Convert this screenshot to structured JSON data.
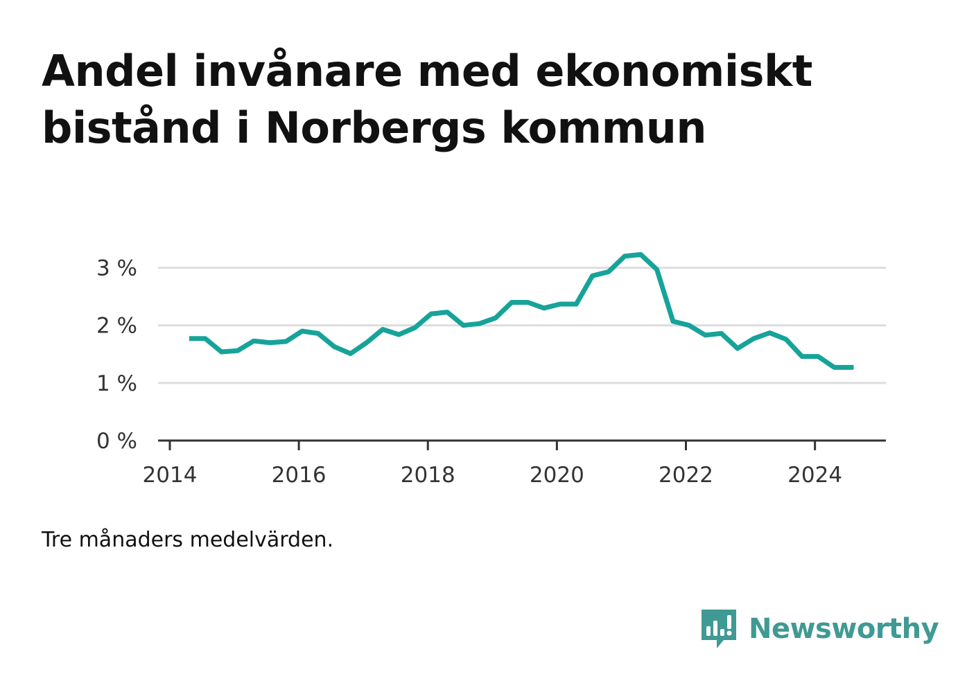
{
  "title": "Andel invånare med ekonomiskt bistånd i Norbergs kommun",
  "note": "Tre månaders medelvärden.",
  "brand": {
    "name": "Newsworthy",
    "icon": "bar-chart-speech-bubble-icon",
    "color": "#3f9a93"
  },
  "chart_data": {
    "type": "line",
    "color": "#16a39a",
    "grid": true,
    "ylim": [
      0,
      3.5
    ],
    "xlim": [
      2014,
      2025.1
    ],
    "y_ticks": [
      {
        "value": 0,
        "label": "0 %"
      },
      {
        "value": 1,
        "label": "1 %"
      },
      {
        "value": 2,
        "label": "2 %"
      },
      {
        "value": 3,
        "label": "3 %"
      }
    ],
    "x_ticks": [
      {
        "value": 2014,
        "label": "2014"
      },
      {
        "value": 2016,
        "label": "2016"
      },
      {
        "value": 2018,
        "label": "2018"
      },
      {
        "value": 2020,
        "label": "2020"
      },
      {
        "value": 2022,
        "label": "2022"
      },
      {
        "value": 2024,
        "label": "2024"
      }
    ],
    "series": [
      {
        "x": [
          2014.3,
          2014.55,
          2014.8,
          2015.05,
          2015.3,
          2015.55,
          2015.8,
          2016.05,
          2016.3,
          2016.55,
          2016.8,
          2017.05,
          2017.3,
          2017.55,
          2017.8,
          2018.05,
          2018.3,
          2018.55,
          2018.8,
          2019.05,
          2019.3,
          2019.55,
          2019.8,
          2020.05,
          2020.3,
          2020.55,
          2020.8,
          2021.05,
          2021.3,
          2021.55,
          2021.8,
          2022.05,
          2022.3,
          2022.55,
          2022.8,
          2023.05,
          2023.3,
          2023.55,
          2023.8,
          2024.05,
          2024.3,
          2024.6
        ],
        "values": [
          1.77,
          1.77,
          1.54,
          1.56,
          1.73,
          1.7,
          1.72,
          1.9,
          1.86,
          1.63,
          1.51,
          1.7,
          1.93,
          1.84,
          1.96,
          2.2,
          2.23,
          2.0,
          2.03,
          2.13,
          2.4,
          2.4,
          2.3,
          2.37,
          2.37,
          2.86,
          2.93,
          3.2,
          3.23,
          2.97,
          2.07,
          2.0,
          1.83,
          1.86,
          1.6,
          1.77,
          1.87,
          1.76,
          1.46,
          1.46,
          1.27,
          1.27
        ]
      }
    ]
  }
}
